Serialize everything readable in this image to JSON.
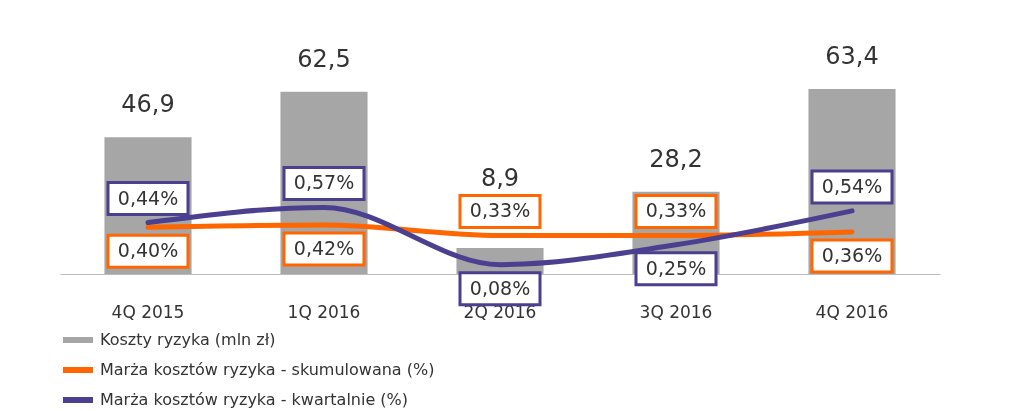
{
  "chart_data": {
    "type": "bar",
    "categories": [
      "4Q 2015",
      "1Q 2016",
      "2Q 2016",
      "3Q 2016",
      "4Q 2016"
    ],
    "series": [
      {
        "name": "Koszty ryzyka (mln zł)",
        "color": "#a6a6a6",
        "values": [
          46.9,
          62.5,
          8.9,
          28.2,
          63.4
        ],
        "value_labels": [
          "46,9",
          "62,5",
          "8,9",
          "28,2",
          "63,4"
        ]
      },
      {
        "name": "Marża kosztów ryzyka - skumulowana (%)",
        "type": "line",
        "axis": "y2",
        "color": "#ff6600",
        "values": [
          0.4,
          0.42,
          0.33,
          0.33,
          0.36
        ],
        "value_labels": [
          "0,40%",
          "0,42%",
          "0,33%",
          "0,33%",
          "0,36%"
        ]
      },
      {
        "name": "Marża kosztów ryzyka - kwartalnie (%)",
        "type": "line",
        "axis": "y2",
        "color": "#4b3f8f",
        "values": [
          0.44,
          0.57,
          0.08,
          0.25,
          0.54
        ],
        "value_labels": [
          "0,44%",
          "0,57%",
          "0,08%",
          "0,25%",
          "0,54%"
        ]
      }
    ],
    "tick_labels": "x",
    "grid": false,
    "legend": "bottom"
  }
}
